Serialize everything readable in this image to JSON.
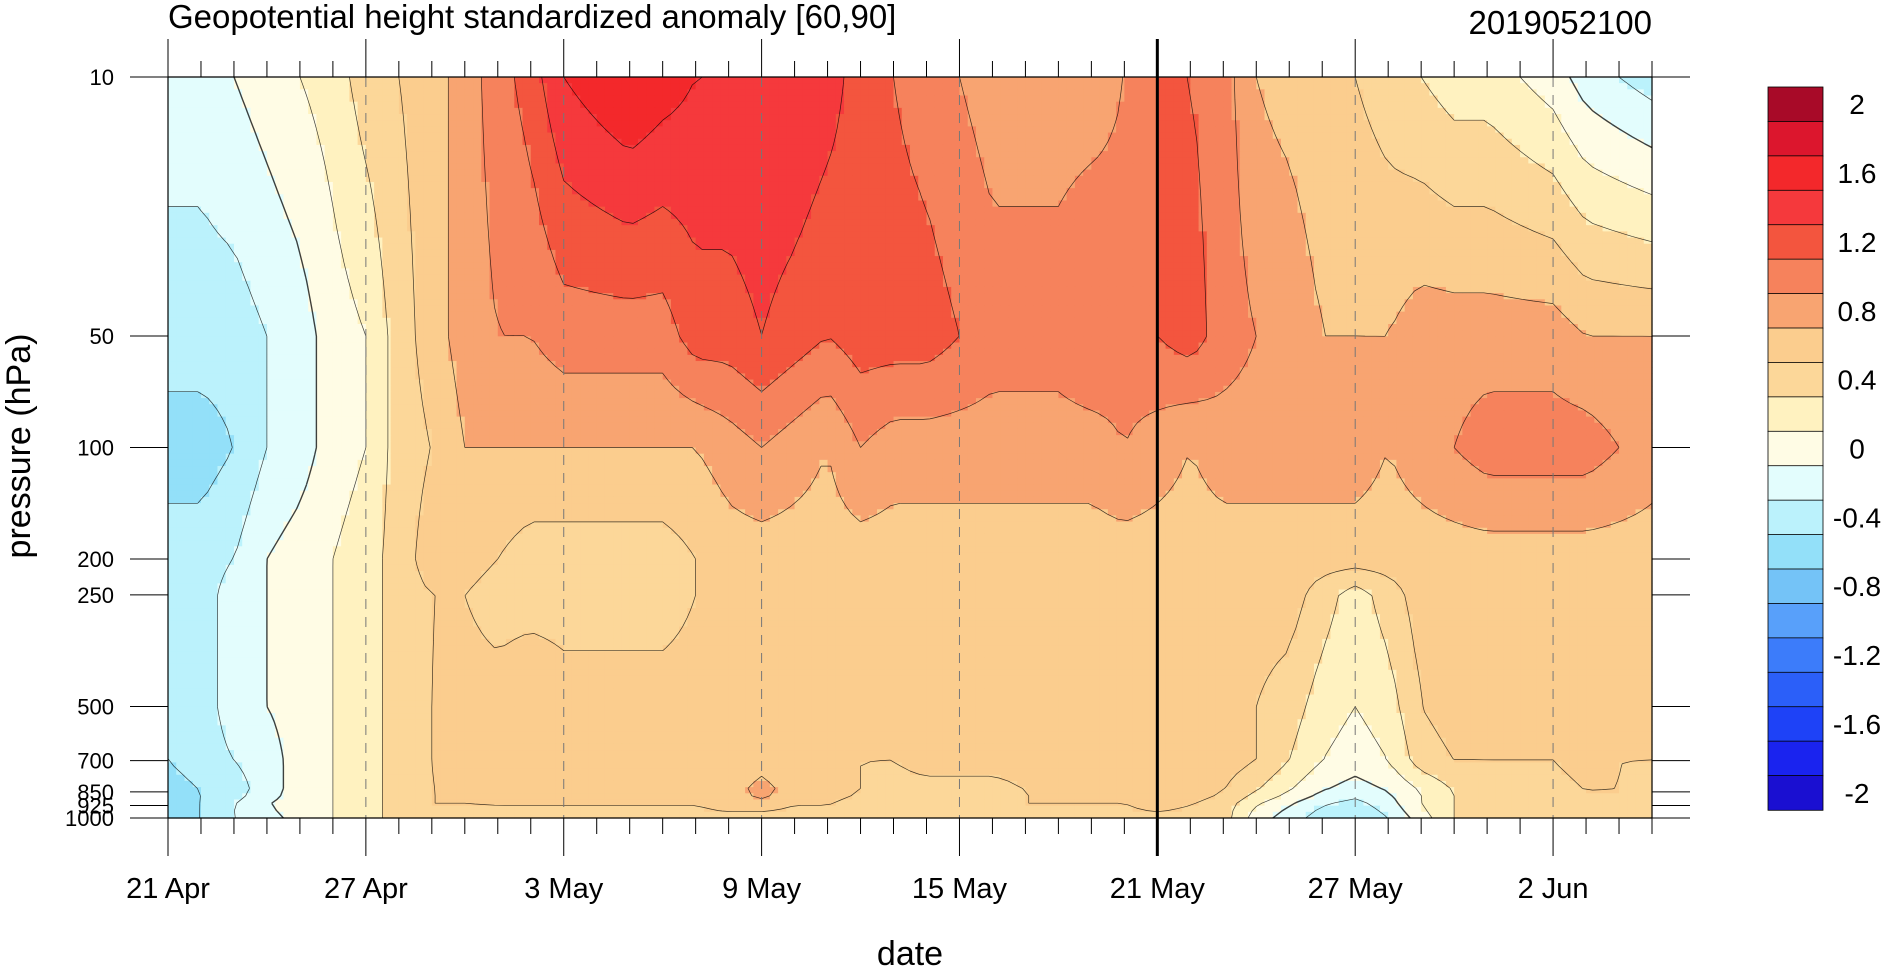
{
  "chart_data": {
    "type": "heatmap",
    "title": "Geopotential height standardized anomaly [60,90]",
    "date_label": "2019052100",
    "xlabel": "date",
    "ylabel": "pressure (hPa)",
    "x_ticks": [
      {
        "day": 0,
        "label": "21 Apr"
      },
      {
        "day": 6,
        "label": "27 Apr"
      },
      {
        "day": 12,
        "label": "3 May"
      },
      {
        "day": 18,
        "label": "9 May"
      },
      {
        "day": 24,
        "label": "15 May"
      },
      {
        "day": 30,
        "label": "21 May"
      },
      {
        "day": 36,
        "label": "27 May"
      },
      {
        "day": 42,
        "label": "2 Jun"
      }
    ],
    "x_range_days": [
      0,
      45
    ],
    "y_ticks": [
      {
        "p": 10,
        "label": "10"
      },
      {
        "p": 50,
        "label": "50"
      },
      {
        "p": 100,
        "label": "100"
      },
      {
        "p": 200,
        "label": "200"
      },
      {
        "p": 250,
        "label": "250"
      },
      {
        "p": 500,
        "label": "500"
      },
      {
        "p": 700,
        "label": "700"
      },
      {
        "p": 850,
        "label": "850"
      },
      {
        "p": 925,
        "label": "925"
      },
      {
        "p": 1000,
        "label": "1000"
      }
    ],
    "y_scale": "log",
    "y_range_hPa": [
      1000,
      10
    ],
    "current_date_day": 30,
    "levels_hPa": [
      1000,
      925,
      850,
      700,
      500,
      250,
      200,
      100,
      50,
      10
    ],
    "x_days": [
      0,
      1,
      2,
      3,
      4,
      5,
      6,
      7,
      8,
      9,
      10,
      11,
      12,
      13,
      14,
      15,
      16,
      17,
      18,
      19,
      20,
      21,
      22,
      23,
      24,
      25,
      26,
      27,
      28,
      29,
      30,
      31,
      32,
      33,
      34,
      35,
      36,
      37,
      38,
      39,
      40,
      41,
      42,
      43,
      44,
      45
    ],
    "values": [
      [
        -0.5,
        -0.4,
        -0.2,
        -0.1,
        0.1,
        0.2,
        0.3,
        0.5,
        0.5,
        0.5,
        0.5,
        0.5,
        0.5,
        0.5,
        0.5,
        0.5,
        0.5,
        0.5,
        0.5,
        0.5,
        0.5,
        0.5,
        0.5,
        0.5,
        0.5,
        0.5,
        0.5,
        0.5,
        0.5,
        0.5,
        0.5,
        0.5,
        0.5,
        0.1,
        -0.1,
        -0.3,
        -0.4,
        -0.2,
        0.1,
        0.4,
        0.5,
        0.5,
        0.5,
        0.5,
        0.5,
        0.5
      ],
      [
        -0.5,
        -0.4,
        -0.2,
        0.0,
        0.1,
        0.2,
        0.3,
        0.5,
        0.6,
        0.6,
        0.6,
        0.6,
        0.6,
        0.6,
        0.6,
        0.6,
        0.6,
        0.7,
        0.7,
        0.6,
        0.6,
        0.5,
        0.5,
        0.5,
        0.5,
        0.5,
        0.6,
        0.6,
        0.6,
        0.6,
        0.7,
        0.6,
        0.5,
        0.2,
        0.0,
        -0.2,
        -0.3,
        -0.1,
        0.2,
        0.4,
        0.5,
        0.5,
        0.5,
        0.5,
        0.5,
        0.5
      ],
      [
        -0.5,
        -0.4,
        -0.3,
        -0.1,
        0.1,
        0.2,
        0.3,
        0.5,
        0.6,
        0.6,
        0.7,
        0.7,
        0.7,
        0.7,
        0.7,
        0.7,
        0.7,
        0.7,
        0.9,
        0.7,
        0.7,
        0.6,
        0.5,
        0.5,
        0.5,
        0.5,
        0.6,
        0.6,
        0.6,
        0.6,
        0.7,
        0.7,
        0.6,
        0.4,
        0.2,
        0.0,
        -0.1,
        0.0,
        0.2,
        0.4,
        0.5,
        0.5,
        0.5,
        0.6,
        0.6,
        0.5
      ],
      [
        -0.4,
        -0.3,
        -0.2,
        -0.1,
        0.1,
        0.2,
        0.3,
        0.5,
        0.6,
        0.7,
        0.7,
        0.7,
        0.7,
        0.7,
        0.7,
        0.7,
        0.7,
        0.6,
        0.7,
        0.6,
        0.6,
        0.6,
        0.6,
        0.7,
        0.7,
        0.7,
        0.7,
        0.7,
        0.7,
        0.7,
        0.7,
        0.7,
        0.7,
        0.6,
        0.4,
        0.2,
        0.1,
        0.2,
        0.5,
        0.6,
        0.6,
        0.6,
        0.6,
        0.7,
        0.6,
        0.6
      ],
      [
        -0.4,
        -0.3,
        -0.1,
        0.0,
        0.1,
        0.2,
        0.3,
        0.5,
        0.6,
        0.7,
        0.7,
        0.8,
        0.7,
        0.7,
        0.7,
        0.7,
        0.7,
        0.7,
        0.7,
        0.7,
        0.7,
        0.7,
        0.7,
        0.7,
        0.8,
        0.8,
        0.8,
        0.8,
        0.8,
        0.7,
        0.7,
        0.7,
        0.7,
        0.6,
        0.5,
        0.3,
        0.2,
        0.3,
        0.6,
        0.7,
        0.7,
        0.7,
        0.7,
        0.7,
        0.7,
        0.7
      ],
      [
        -0.3,
        -0.3,
        -0.1,
        0.0,
        0.1,
        0.2,
        0.3,
        0.5,
        0.6,
        0.6,
        0.5,
        0.5,
        0.5,
        0.5,
        0.5,
        0.5,
        0.6,
        0.7,
        0.7,
        0.7,
        0.7,
        0.7,
        0.7,
        0.7,
        0.7,
        0.7,
        0.7,
        0.7,
        0.7,
        0.7,
        0.7,
        0.7,
        0.7,
        0.7,
        0.7,
        0.5,
        0.3,
        0.5,
        0.7,
        0.7,
        0.7,
        0.7,
        0.7,
        0.7,
        0.7,
        0.7
      ],
      [
        -0.3,
        -0.3,
        -0.2,
        0.0,
        0.1,
        0.2,
        0.3,
        0.5,
        0.7,
        0.7,
        0.6,
        0.5,
        0.5,
        0.5,
        0.5,
        0.5,
        0.6,
        0.7,
        0.7,
        0.7,
        0.7,
        0.7,
        0.7,
        0.7,
        0.7,
        0.7,
        0.7,
        0.7,
        0.7,
        0.7,
        0.7,
        0.7,
        0.7,
        0.7,
        0.7,
        0.7,
        0.7,
        0.7,
        0.7,
        0.7,
        0.7,
        0.7,
        0.7,
        0.7,
        0.7,
        0.7
      ],
      [
        -0.5,
        -0.5,
        -0.4,
        -0.2,
        -0.1,
        0.1,
        0.2,
        0.5,
        0.6,
        0.8,
        0.8,
        0.8,
        0.8,
        0.8,
        0.8,
        0.8,
        0.8,
        0.9,
        1.0,
        0.9,
        0.8,
        1.0,
        0.9,
        0.9,
        0.9,
        0.9,
        0.9,
        0.9,
        0.9,
        1.0,
        0.9,
        0.8,
        0.9,
        0.9,
        0.9,
        0.9,
        0.9,
        0.8,
        0.9,
        1.0,
        1.1,
        1.1,
        1.1,
        1.1,
        1.0,
        0.9
      ],
      [
        -0.3,
        -0.3,
        -0.3,
        -0.2,
        -0.1,
        0.1,
        0.2,
        0.5,
        0.7,
        0.9,
        1.0,
        1.0,
        1.1,
        1.1,
        1.1,
        1.1,
        1.3,
        1.3,
        1.4,
        1.3,
        1.2,
        1.3,
        1.3,
        1.3,
        1.2,
        1.1,
        1.1,
        1.1,
        1.2,
        1.1,
        1.2,
        1.3,
        1.1,
        1.0,
        1.0,
        0.8,
        0.8,
        0.8,
        0.9,
        0.9,
        0.9,
        0.9,
        0.9,
        0.8,
        0.8,
        0.8
      ],
      [
        -0.1,
        -0.1,
        0.0,
        0.1,
        0.2,
        0.3,
        0.5,
        0.6,
        0.7,
        0.9,
        1.1,
        1.3,
        1.6,
        1.7,
        1.8,
        1.7,
        1.6,
        1.6,
        1.6,
        1.6,
        1.5,
        1.3,
        1.2,
        1.1,
        1.0,
        0.9,
        0.9,
        0.9,
        0.9,
        1.0,
        1.2,
        1.2,
        1.1,
        0.8,
        0.7,
        0.6,
        0.6,
        0.5,
        0.4,
        0.3,
        0.3,
        0.2,
        0.1,
        -0.1,
        -0.2,
        -0.3
      ]
    ],
    "contour_levels": [
      -2.0,
      -1.8,
      -1.6,
      -1.4,
      -1.2,
      -1.0,
      -0.8,
      -0.6,
      -0.4,
      -0.2,
      0.0,
      0.2,
      0.4,
      0.6,
      0.8,
      1.0,
      1.2,
      1.4,
      1.6,
      1.8,
      2.0
    ],
    "colorbar": {
      "colors": [
        "#1a0fd1",
        "#1a23ef",
        "#1e42f7",
        "#2b5ff9",
        "#3c7cfa",
        "#58a0fa",
        "#74c3f7",
        "#93e0f9",
        "#bbf2fc",
        "#e3fdfd",
        "#fffce5",
        "#fff2c0",
        "#fcd799",
        "#fbcd8e",
        "#f8a471",
        "#f6825c",
        "#f3553e",
        "#f5393c",
        "#f3282b",
        "#dc162d",
        "#a80a28"
      ],
      "tick_labels": [
        "2",
        "1.6",
        "1.2",
        "0.8",
        "0.4",
        "0",
        "-0.4",
        "-0.8",
        "-1.2",
        "-1.6",
        "-2"
      ],
      "tick_values": [
        2.0,
        1.6,
        1.2,
        0.8,
        0.4,
        0.0,
        -0.4,
        -0.8,
        -1.2,
        -1.6,
        -2.0
      ]
    }
  }
}
